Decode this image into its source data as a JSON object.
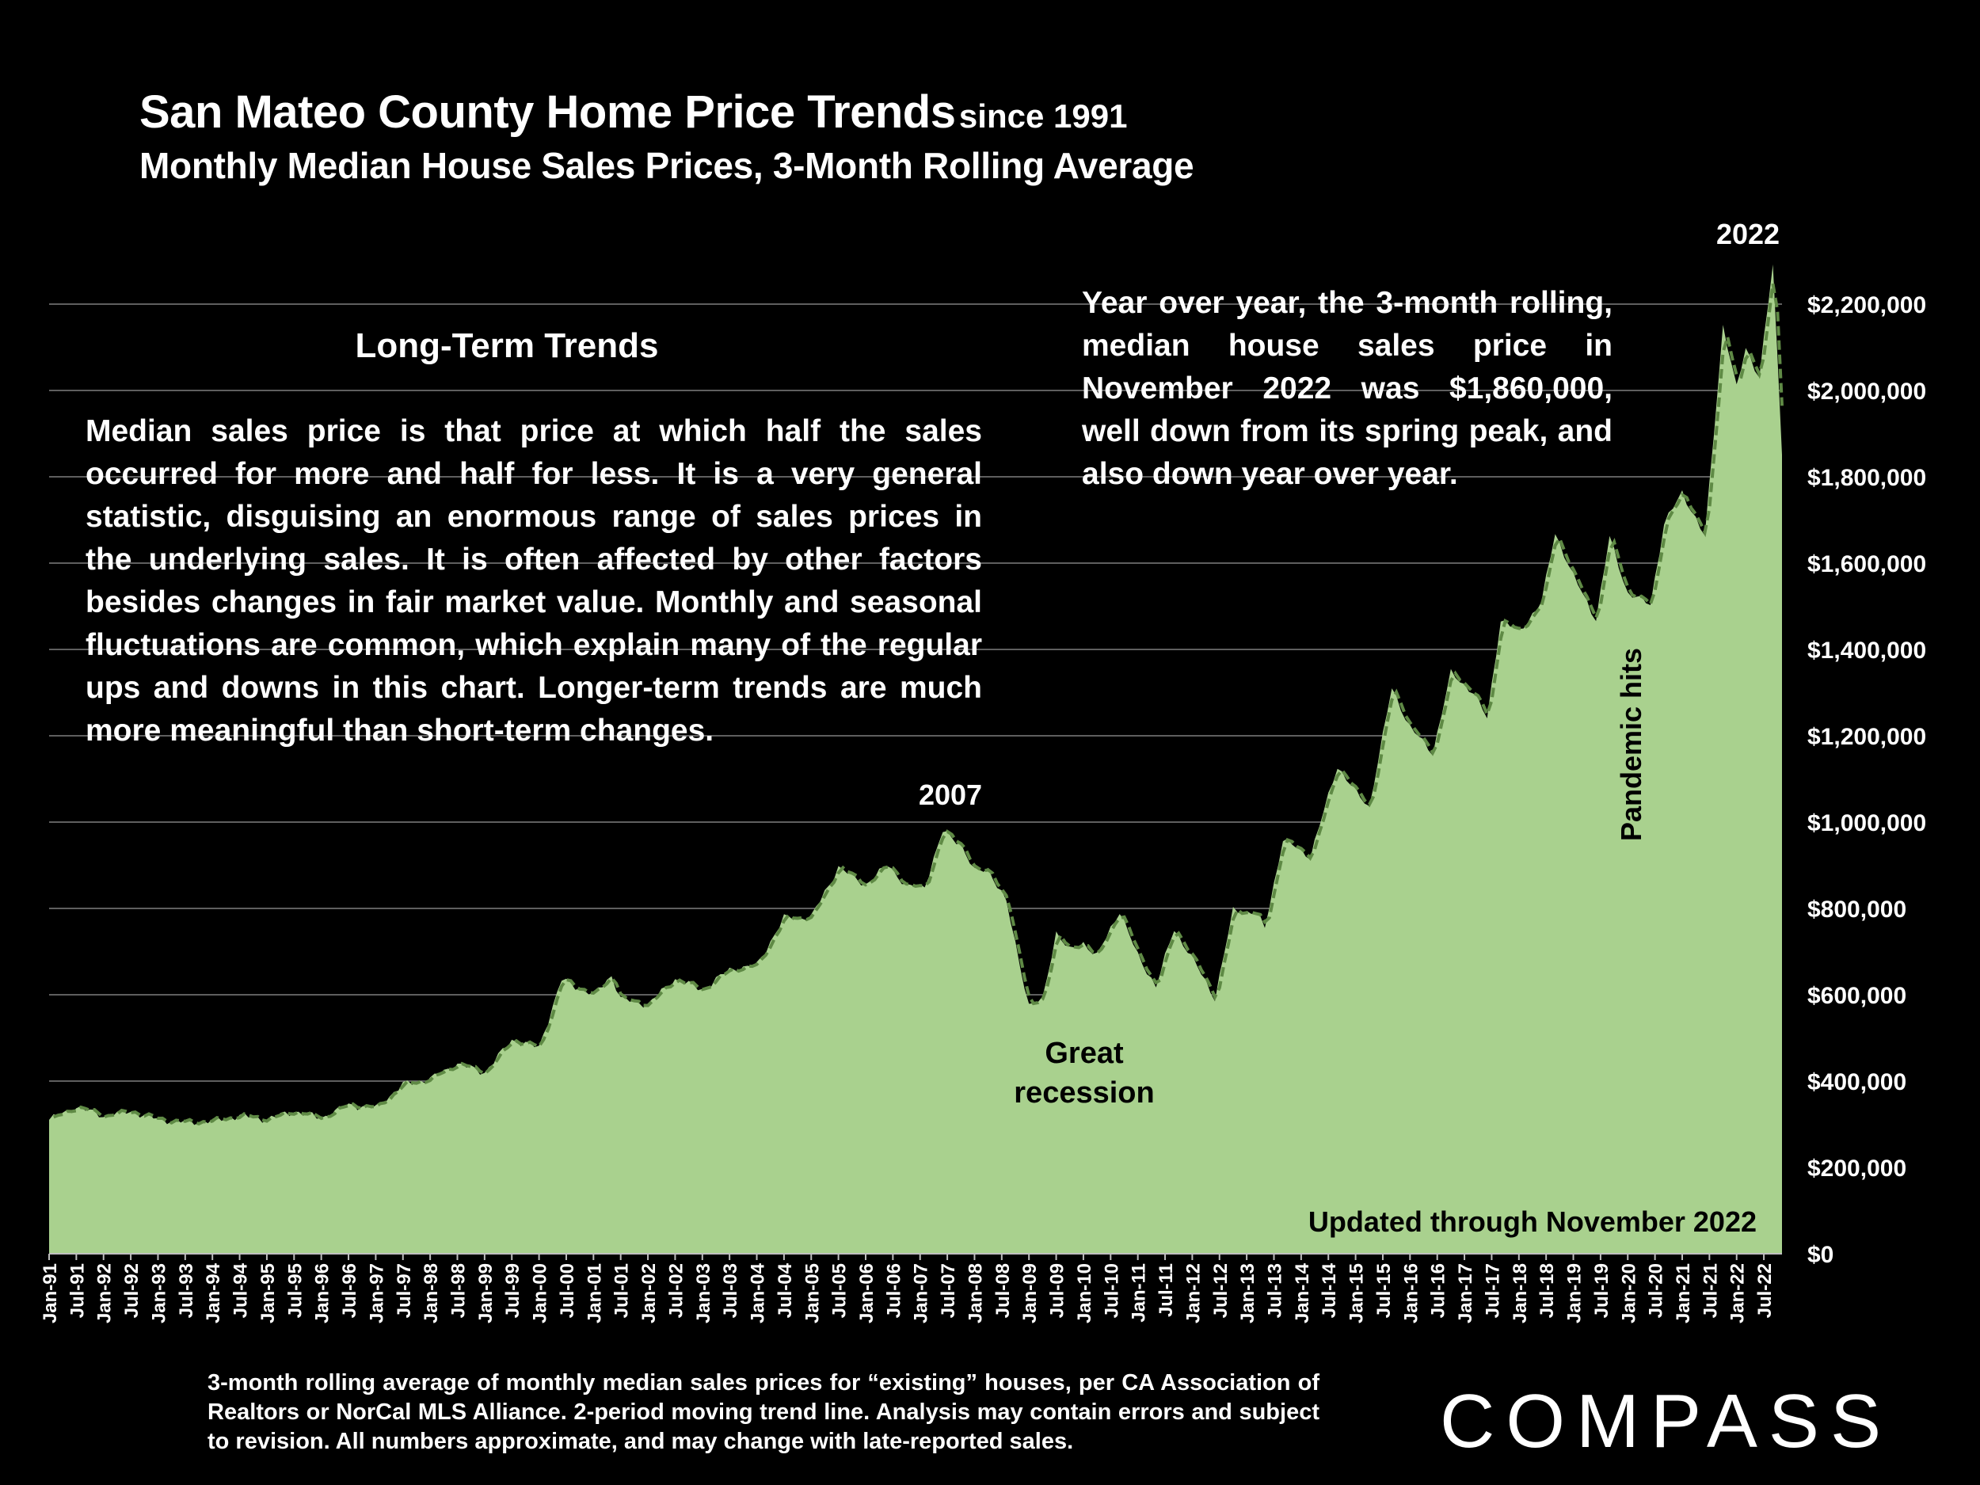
{
  "header": {
    "title": "San Mateo County Home Price Trends",
    "title_suffix": "since 1991",
    "subtitle": "Monthly Median House Sales Prices, 3-Month Rolling Average"
  },
  "long_term": {
    "heading": "Long-Term Trends",
    "body": "Median sales price is that price at which half the sales occurred for more and half for less. It is a very general statistic, disguising an enormous range of sales prices in the underlying sales. It is often affected by other factors besides changes in fair market value. Monthly and seasonal fluctuations are common, which explain many of the regular ups and downs in this chart. Longer-term trends are much more meaningful than short-term changes."
  },
  "yoy_note": "Year over year, the 3-month rolling, median house sales price in November 2022 was $1,860,000, well down from its spring peak, and also down year over year.",
  "footer_note": "3-month rolling average of monthly median sales prices for “existing” houses, per CA Association of Realtors or NorCal MLS Alliance. 2-period moving trend line. Analysis may contain errors and subject to revision. All numbers approximate, and may change with late-reported sales.",
  "logo": "COMPASS",
  "colors": {
    "background": "#000000",
    "area_fill": "#a9d18e",
    "trend_line": "#5f8a45",
    "grid": "#7f7f7f",
    "text": "#ffffff",
    "annotation_text": "#000000"
  },
  "chart_data": {
    "type": "area",
    "x_start": "Jan-91",
    "x_end": "Nov-22",
    "x_tick_labels": [
      "Jan-91",
      "Jul-91",
      "Jan-92",
      "Jul-92",
      "Jan-93",
      "Jul-93",
      "Jan-94",
      "Jul-94",
      "Jan-95",
      "Jul-95",
      "Jan-96",
      "Jul-96",
      "Jan-97",
      "Jul-97",
      "Jan-98",
      "Jul-98",
      "Jan-99",
      "Jul-99",
      "Jan-00",
      "Jul-00",
      "Jan-01",
      "Jul-01",
      "Jan-02",
      "Jul-02",
      "Jan-03",
      "Jul-03",
      "Jan-04",
      "Jul-04",
      "Jan-05",
      "Jul-05",
      "Jan-06",
      "Jul-06",
      "Jan-07",
      "Jul-07",
      "Jan-08",
      "Jul-08",
      "Jan-09",
      "Jul-09",
      "Jan-10",
      "Jul-10",
      "Jan-11",
      "Jul-11",
      "Jan-12",
      "Jul-12",
      "Jan-13",
      "Jul-13",
      "Jan-14",
      "Jul-14",
      "Jan-15",
      "Jul-15",
      "Jan-16",
      "Jul-16",
      "Jan-17",
      "Jul-17",
      "Jan-18",
      "Jul-18",
      "Jan-19",
      "Jul-19",
      "Jan-20",
      "Jul-20",
      "Jan-21",
      "Jul-21",
      "Jan-22",
      "Jul-22"
    ],
    "y_tick_labels": [
      "$0",
      "$200,000",
      "$400,000",
      "$600,000",
      "$800,000",
      "$1,000,000",
      "$1,200,000",
      "$1,400,000",
      "$1,600,000",
      "$1,800,000",
      "$2,000,000",
      "$2,200,000"
    ],
    "ylim": [
      0,
      2200000
    ],
    "grid": true,
    "y_axis_side": "right",
    "series": [
      {
        "name": "3-month rolling average",
        "points": [
          [
            "Jan-91",
            310000
          ],
          [
            "Jul-91",
            340000
          ],
          [
            "Jan-92",
            320000
          ],
          [
            "Jul-92",
            330000
          ],
          [
            "Jan-93",
            312000
          ],
          [
            "Jul-93",
            305000
          ],
          [
            "Jan-94",
            308000
          ],
          [
            "Jul-94",
            320000
          ],
          [
            "Jan-95",
            312000
          ],
          [
            "Jul-95",
            330000
          ],
          [
            "Jan-96",
            315000
          ],
          [
            "Jul-96",
            345000
          ],
          [
            "Jan-97",
            338000
          ],
          [
            "Jul-97",
            392000
          ],
          [
            "Jan-98",
            405000
          ],
          [
            "Jul-98",
            440000
          ],
          [
            "Jan-99",
            420000
          ],
          [
            "Jul-99",
            495000
          ],
          [
            "Jan-00",
            478000
          ],
          [
            "Jun-00",
            635000
          ],
          [
            "Jan-01",
            600000
          ],
          [
            "May-01",
            645000
          ],
          [
            "Jul-01",
            590000
          ],
          [
            "Jan-02",
            578000
          ],
          [
            "Jul-02",
            636000
          ],
          [
            "Jan-03",
            612000
          ],
          [
            "Jul-03",
            658000
          ],
          [
            "Jan-04",
            668000
          ],
          [
            "Jul-04",
            778000
          ],
          [
            "Jan-05",
            780000
          ],
          [
            "Jul-05",
            895000
          ],
          [
            "Jan-06",
            855000
          ],
          [
            "Jun-06",
            902000
          ],
          [
            "Oct-06",
            850000
          ],
          [
            "Feb-07",
            852000
          ],
          [
            "Jun-07",
            978000
          ],
          [
            "Oct-07",
            950000
          ],
          [
            "Jan-08",
            885000
          ],
          [
            "Apr-08",
            892000
          ],
          [
            "Aug-08",
            815000
          ],
          [
            "Jan-09",
            575000
          ],
          [
            "Apr-09",
            588000
          ],
          [
            "Jul-09",
            745000
          ],
          [
            "Oct-09",
            702000
          ],
          [
            "Jan-10",
            720000
          ],
          [
            "Apr-10",
            690000
          ],
          [
            "Sep-10",
            795000
          ],
          [
            "Jan-11",
            690000
          ],
          [
            "May-11",
            620000
          ],
          [
            "Sep-11",
            752000
          ],
          [
            "Jan-12",
            685000
          ],
          [
            "Jun-12",
            592000
          ],
          [
            "Oct-12",
            795000
          ],
          [
            "Mar-13",
            790000
          ],
          [
            "May-13",
            755000
          ],
          [
            "Sep-13",
            960000
          ],
          [
            "Mar-14",
            920000
          ],
          [
            "Sep-14",
            1130000
          ],
          [
            "Jan-15",
            1070000
          ],
          [
            "Apr-15",
            1035000
          ],
          [
            "Sep-15",
            1310000
          ],
          [
            "Jan-16",
            1220000
          ],
          [
            "Jun-16",
            1160000
          ],
          [
            "Oct-16",
            1345000
          ],
          [
            "Mar-17",
            1300000
          ],
          [
            "Jun-17",
            1240000
          ],
          [
            "Sep-17",
            1470000
          ],
          [
            "Jan-18",
            1440000
          ],
          [
            "Jun-18",
            1510000
          ],
          [
            "Sep-18",
            1670000
          ],
          [
            "Jan-19",
            1570000
          ],
          [
            "Jun-19",
            1470000
          ],
          [
            "Sep-19",
            1660000
          ],
          [
            "Jan-20",
            1530000
          ],
          [
            "Jun-20",
            1505000
          ],
          [
            "Sep-20",
            1690000
          ],
          [
            "Jan-21",
            1765000
          ],
          [
            "Jun-21",
            1660000
          ],
          [
            "Oct-21",
            2150000
          ],
          [
            "Jan-22",
            2005000
          ],
          [
            "Mar-22",
            2100000
          ],
          [
            "Jun-22",
            2030000
          ],
          [
            "Sep-22",
            2290000
          ],
          [
            "Nov-22",
            1860000
          ]
        ]
      }
    ],
    "annotations": [
      {
        "id": "peak_2022",
        "text": "2022"
      },
      {
        "id": "peak_2007",
        "text": "2007"
      },
      {
        "id": "recession",
        "text": "Great recession"
      },
      {
        "id": "pandemic",
        "text": "Pandemic hits"
      },
      {
        "id": "updated",
        "text": "Updated through November 2022"
      }
    ]
  }
}
